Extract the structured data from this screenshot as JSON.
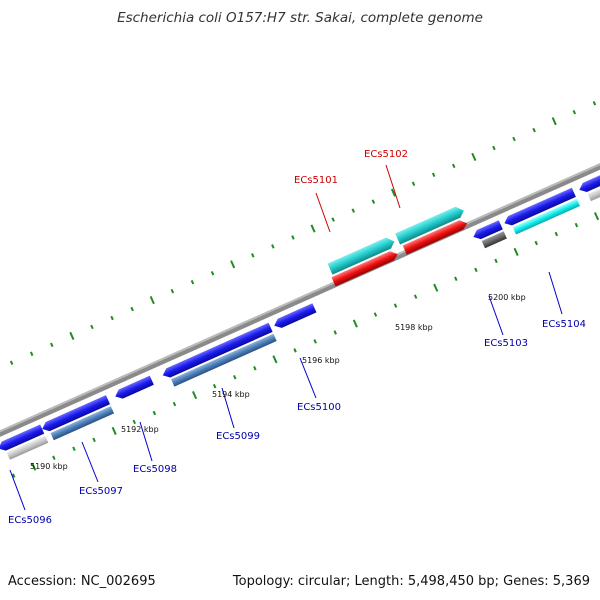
{
  "title": "Escherichia coli O157:H7 str. Sakai, complete genome",
  "footer": {
    "accession": "Accession: NC_002695",
    "summary": "Topology: circular; Length: 5,498,450 bp; Genes: 5,369"
  },
  "colors": {
    "backbone": "#888888",
    "tick": "#228b22",
    "gene_blue": "#1a1aee",
    "gene_steel": "#4a7eb8",
    "gene_cyan": "#22cccc",
    "gene_cyan_bright": "#11eeee",
    "gene_red": "#ee1111",
    "gene_grey_light": "#c8c8c8",
    "gene_grey_dark": "#666666"
  },
  "scale_labels": [
    {
      "kbp": 5190,
      "text": "5190 kbp"
    },
    {
      "kbp": 5192,
      "text": "5192 kbp"
    },
    {
      "kbp": 5194,
      "text": "5194 kbp"
    },
    {
      "kbp": 5196,
      "text": "5196 kbp"
    },
    {
      "kbp": 5198,
      "text": "5198 kbp"
    },
    {
      "kbp": 5200,
      "text": "5200 kbp"
    }
  ],
  "genes": [
    {
      "id": "ECs5096",
      "label": "ECs5096",
      "color": "gene_blue",
      "label_color": "blue"
    },
    {
      "id": "ECs5097",
      "label": "ECs5097",
      "color": "gene_steel",
      "label_color": "blue"
    },
    {
      "id": "ECs5098",
      "label": "ECs5098",
      "color": "gene_blue",
      "label_color": "blue"
    },
    {
      "id": "ECs5099",
      "label": "ECs5099",
      "color": "gene_steel",
      "label_color": "blue"
    },
    {
      "id": "ECs5100",
      "label": "ECs5100",
      "color": "gene_blue",
      "label_color": "blue"
    },
    {
      "id": "ECs5101",
      "label": "ECs5101",
      "color": "gene_cyan",
      "label_color": "red"
    },
    {
      "id": "ECs5102",
      "label": "ECs5102",
      "color": "gene_cyan",
      "label_color": "red"
    },
    {
      "id": "ECs5103",
      "label": "ECs5103",
      "color": "gene_grey_dark",
      "label_color": "blue"
    },
    {
      "id": "ECs5104",
      "label": "ECs5104",
      "color": "gene_cyan_bright",
      "label_color": "blue"
    }
  ]
}
